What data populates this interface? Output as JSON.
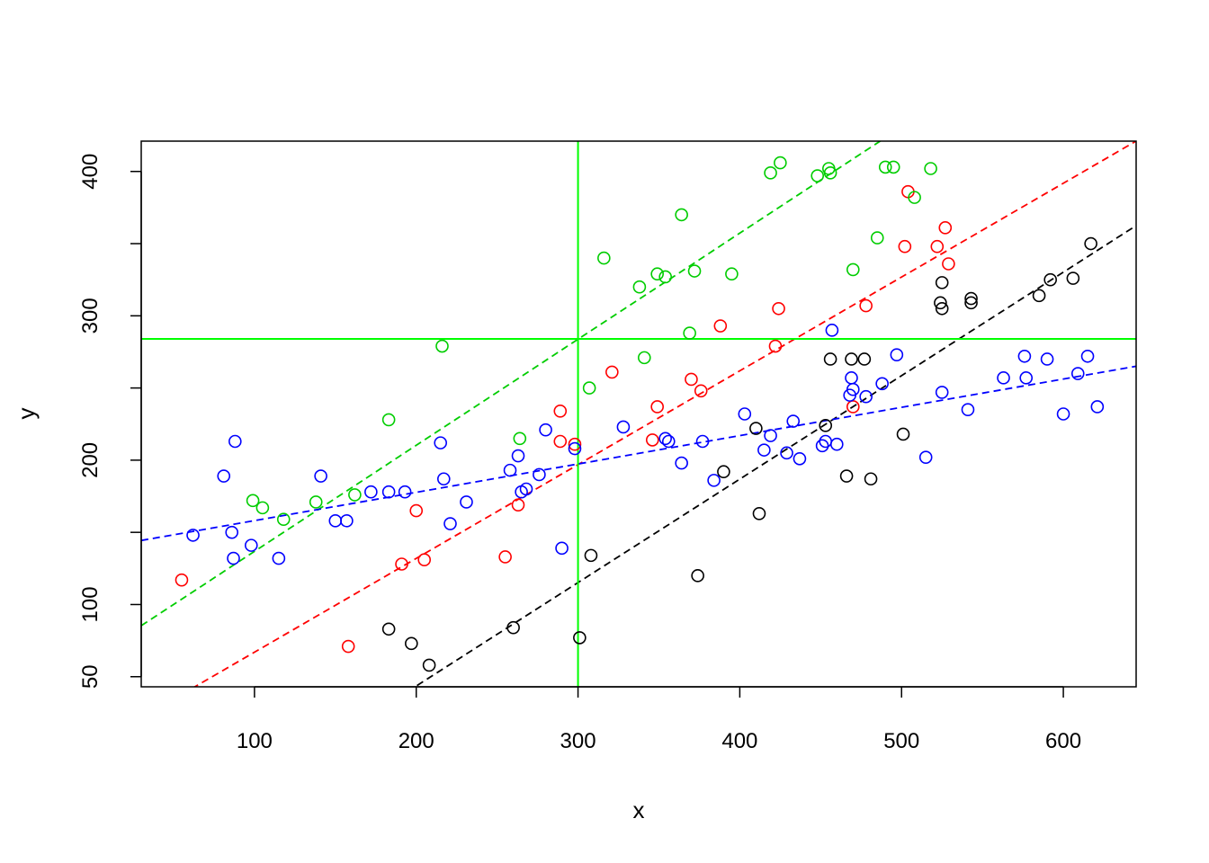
{
  "chart_data": {
    "type": "scatter",
    "xlabel": "x",
    "ylabel": "y",
    "xlim": [
      30,
      645
    ],
    "ylim": [
      43,
      421
    ],
    "x_ticks": [
      100,
      200,
      300,
      400,
      500,
      600
    ],
    "y_ticks": [
      50,
      100,
      150,
      200,
      250,
      300,
      350,
      400
    ],
    "y_tick_labels": [
      "50",
      "100",
      "",
      "200",
      "",
      "300",
      "",
      "400"
    ],
    "grid": false,
    "legend": "none",
    "point_style": "open-circle",
    "series": [
      {
        "color": "#000000",
        "points": [
          [
            183,
            83
          ],
          [
            197,
            73
          ],
          [
            208,
            58
          ],
          [
            260,
            84
          ],
          [
            301,
            77
          ],
          [
            308,
            134
          ],
          [
            374,
            120
          ],
          [
            390,
            192
          ],
          [
            410,
            222
          ],
          [
            412,
            163
          ],
          [
            453,
            224
          ],
          [
            456,
            270
          ],
          [
            466,
            189
          ],
          [
            469,
            270
          ],
          [
            477,
            270
          ],
          [
            481,
            187
          ],
          [
            501,
            218
          ],
          [
            524,
            309
          ],
          [
            525,
            305
          ],
          [
            525,
            323
          ],
          [
            543,
            309
          ],
          [
            543,
            312
          ],
          [
            585,
            314
          ],
          [
            592,
            325
          ],
          [
            606,
            326
          ],
          [
            617,
            350
          ]
        ],
        "fit": {
          "intercept": -99.8,
          "slope": 0.7167
        }
      },
      {
        "color": "#ff0000",
        "points": [
          [
            55,
            117
          ],
          [
            158,
            71
          ],
          [
            191,
            128
          ],
          [
            200,
            165
          ],
          [
            205,
            131
          ],
          [
            255,
            133
          ],
          [
            263,
            169
          ],
          [
            289,
            234
          ],
          [
            289,
            213
          ],
          [
            298,
            211
          ],
          [
            321,
            261
          ],
          [
            346,
            214
          ],
          [
            349,
            237
          ],
          [
            370,
            256
          ],
          [
            376,
            248
          ],
          [
            388,
            293
          ],
          [
            422,
            279
          ],
          [
            424,
            305
          ],
          [
            470,
            237
          ],
          [
            478,
            307
          ],
          [
            502,
            348
          ],
          [
            504,
            386
          ],
          [
            522,
            348
          ],
          [
            527,
            361
          ],
          [
            529,
            336
          ]
        ],
        "fit": {
          "intercept": 2.0,
          "slope": 0.6497
        }
      },
      {
        "color": "#00cd00",
        "points": [
          [
            99,
            172
          ],
          [
            105,
            167
          ],
          [
            118,
            159
          ],
          [
            138,
            171
          ],
          [
            162,
            176
          ],
          [
            183,
            228
          ],
          [
            216,
            279
          ],
          [
            264,
            215
          ],
          [
            307,
            250
          ],
          [
            316,
            340
          ],
          [
            338,
            320
          ],
          [
            341,
            271
          ],
          [
            349,
            329
          ],
          [
            354,
            327
          ],
          [
            364,
            370
          ],
          [
            369,
            288
          ],
          [
            372,
            331
          ],
          [
            395,
            329
          ],
          [
            419,
            399
          ],
          [
            425,
            406
          ],
          [
            448,
            397
          ],
          [
            455,
            402
          ],
          [
            456,
            399
          ],
          [
            470,
            332
          ],
          [
            485,
            354
          ],
          [
            490,
            403
          ],
          [
            495,
            403
          ],
          [
            508,
            382
          ],
          [
            518,
            402
          ]
        ],
        "fit": {
          "intercept": 63.3,
          "slope": 0.7349
        }
      },
      {
        "color": "#0000ff",
        "points": [
          [
            62,
            148
          ],
          [
            81,
            189
          ],
          [
            86,
            150
          ],
          [
            88,
            213
          ],
          [
            87,
            132
          ],
          [
            98,
            141
          ],
          [
            115,
            132
          ],
          [
            141,
            189
          ],
          [
            150,
            158
          ],
          [
            157,
            158
          ],
          [
            172,
            178
          ],
          [
            183,
            178
          ],
          [
            193,
            178
          ],
          [
            215,
            212
          ],
          [
            217,
            187
          ],
          [
            221,
            156
          ],
          [
            231,
            171
          ],
          [
            258,
            193
          ],
          [
            263,
            203
          ],
          [
            265,
            178
          ],
          [
            268,
            180
          ],
          [
            276,
            190
          ],
          [
            280,
            221
          ],
          [
            290,
            139
          ],
          [
            298,
            208
          ],
          [
            328,
            223
          ],
          [
            354,
            215
          ],
          [
            356,
            213
          ],
          [
            364,
            198
          ],
          [
            377,
            213
          ],
          [
            384,
            186
          ],
          [
            403,
            232
          ],
          [
            415,
            207
          ],
          [
            419,
            217
          ],
          [
            429,
            205
          ],
          [
            433,
            227
          ],
          [
            437,
            201
          ],
          [
            451,
            210
          ],
          [
            453,
            213
          ],
          [
            457,
            290
          ],
          [
            460,
            211
          ],
          [
            468,
            245
          ],
          [
            469,
            257
          ],
          [
            470,
            249
          ],
          [
            478,
            244
          ],
          [
            488,
            253
          ],
          [
            497,
            273
          ],
          [
            515,
            202
          ],
          [
            525,
            247
          ],
          [
            541,
            235
          ],
          [
            563,
            257
          ],
          [
            576,
            272
          ],
          [
            577,
            257
          ],
          [
            590,
            270
          ],
          [
            600,
            232
          ],
          [
            609,
            260
          ],
          [
            615,
            272
          ],
          [
            621,
            237
          ]
        ],
        "fit": {
          "intercept": 138.5,
          "slope": 0.1962
        }
      }
    ],
    "reference_lines": {
      "color": "#00ff00",
      "vertical_x": 300,
      "horizontal_y": 284
    }
  }
}
